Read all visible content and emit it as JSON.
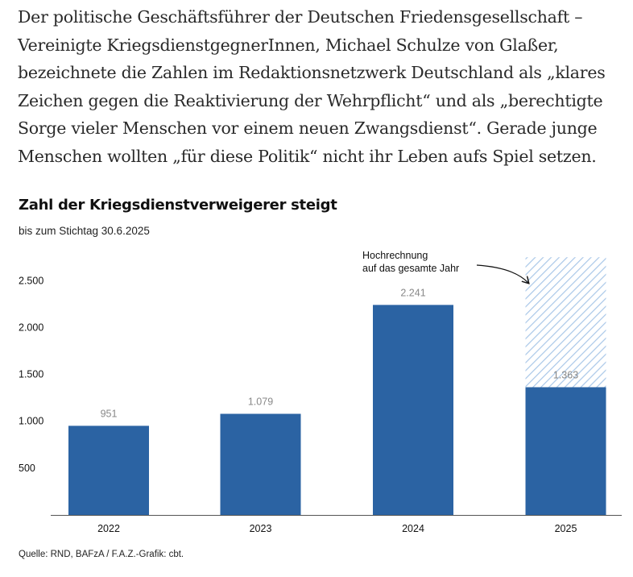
{
  "article": {
    "paragraph": "Der politische Geschäftsführer der Deutschen Friedensgesellschaft – Vereinigte KriegsdienstgegnerInnen, Michael Schulze von Glaßer, bezeichnete die Zahlen im Redaktionsnetzwerk Deutschland als „klares Zeichen gegen die Reaktivierung der Wehrpflicht“ und als „berechtigte Sorge vieler Menschen vor einem neuen Zwangsdienst“. Gerade junge Menschen wollten „für diese Politik“ nicht ihr Leben aufs Spiel setzen."
  },
  "chart_data": {
    "type": "bar",
    "title": "Zahl der Kriegsdienstverweigerer steigt",
    "subtitle": "bis zum Stichtag 30.6.2025",
    "categories": [
      "2022",
      "2023",
      "2024",
      "2025"
    ],
    "values": [
      951,
      1079,
      2241,
      1363
    ],
    "value_labels": [
      "951",
      "1.079",
      "2.241",
      "1.363"
    ],
    "projection": {
      "category": "2025",
      "value": 2750,
      "style": "hatched",
      "annotation": [
        "Hochrechnung",
        "auf das gesamte Jahr"
      ]
    },
    "y_ticks": [
      500,
      1000,
      1500,
      2000,
      2500
    ],
    "y_tick_labels": [
      "500",
      "1.000",
      "1.500",
      "2.000",
      "2.500"
    ],
    "ylim": [
      0,
      2800
    ],
    "xlabel": "",
    "ylabel": "",
    "grid": false,
    "colors": {
      "bar": "#2b63a3",
      "hatch": "#a9c7e8",
      "axis": "#555555"
    }
  },
  "source": "Quelle: RND, BAFzA / F.A.Z.-Grafik: cbt."
}
